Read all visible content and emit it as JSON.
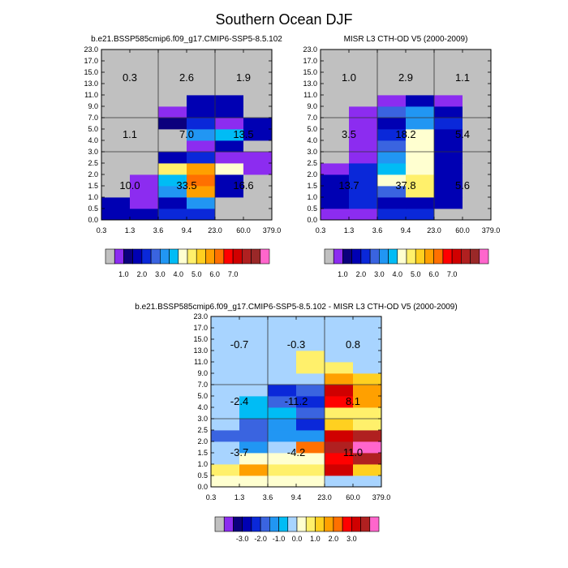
{
  "title": "Southern Ocean DJF",
  "chart_data": [
    {
      "type": "heatmap",
      "title": "b.e21.BSSP585cmip6.f09_g17.CMIP6-SSP5-8.5.102",
      "x_ticks": [
        "0.3",
        "1.3",
        "3.6",
        "9.4",
        "23.0",
        "60.0",
        "379.0"
      ],
      "y_ticks": [
        "0.0",
        "0.5",
        "1.0",
        "1.5",
        "2.0",
        "2.5",
        "3.0",
        "4.0",
        "5.0",
        "7.0",
        "9.0",
        "11.0",
        "13.0",
        "15.0",
        "17.0",
        "23.0"
      ],
      "colorbar_labels": [
        "1.0",
        "2.0",
        "3.0",
        "4.0",
        "5.0",
        "6.0",
        "7.0"
      ],
      "cells_note": "rows bottom-to-top (15 y bins), columns left-to-right (6 x bins); values are color-bin indices into palette",
      "cells": [
        [
          3,
          3,
          4,
          4,
          0,
          0
        ],
        [
          3,
          1,
          3,
          6,
          0,
          0
        ],
        [
          0,
          1,
          6,
          11,
          3,
          0
        ],
        [
          0,
          1,
          7,
          12,
          3,
          0
        ],
        [
          0,
          0,
          9,
          11,
          8,
          1
        ],
        [
          0,
          0,
          3,
          4,
          1,
          1
        ],
        [
          0,
          0,
          0,
          1,
          3,
          0
        ],
        [
          0,
          0,
          0,
          6,
          7,
          3
        ],
        [
          0,
          0,
          2,
          4,
          1,
          3
        ],
        [
          0,
          0,
          1,
          3,
          3,
          0
        ],
        [
          0,
          0,
          0,
          3,
          3,
          0
        ],
        [
          0,
          0,
          0,
          0,
          0,
          0
        ],
        [
          0,
          0,
          0,
          0,
          0,
          0
        ],
        [
          0,
          0,
          0,
          0,
          0,
          0
        ],
        [
          0,
          0,
          0,
          0,
          0,
          0
        ]
      ],
      "region_labels": [
        {
          "value": "0.3",
          "xi": 0,
          "yi": 12.5
        },
        {
          "value": "2.6",
          "xi": 2,
          "yi": 12.5
        },
        {
          "value": "1.9",
          "xi": 4,
          "yi": 12.5
        },
        {
          "value": "1.1",
          "xi": 0,
          "yi": 7.5
        },
        {
          "value": "7.0",
          "xi": 2,
          "yi": 7.5
        },
        {
          "value": "13.5",
          "xi": 4,
          "yi": 7.5
        },
        {
          "value": "10.0",
          "xi": 0,
          "yi": 3.0
        },
        {
          "value": "33.5",
          "xi": 2,
          "yi": 3.0
        },
        {
          "value": "16.6",
          "xi": 4,
          "yi": 3.0
        }
      ]
    },
    {
      "type": "heatmap",
      "title": "MISR L3 CTH-OD V5 (2000-2009)",
      "x_ticks": [
        "0.3",
        "1.3",
        "3.6",
        "9.4",
        "23.0",
        "60.0",
        "379.0"
      ],
      "y_ticks": [
        "0.0",
        "0.5",
        "1.0",
        "1.5",
        "2.0",
        "2.5",
        "3.0",
        "4.0",
        "5.0",
        "7.0",
        "9.0",
        "11.0",
        "13.0",
        "15.0",
        "17.0",
        "23.0"
      ],
      "colorbar_labels": [
        "1.0",
        "2.0",
        "3.0",
        "4.0",
        "5.0",
        "6.0",
        "7.0"
      ],
      "cells": [
        [
          1,
          1,
          4,
          4,
          0,
          0
        ],
        [
          3,
          4,
          3,
          3,
          3,
          0
        ],
        [
          3,
          4,
          5,
          9,
          3,
          0
        ],
        [
          3,
          4,
          8,
          9,
          3,
          0
        ],
        [
          1,
          4,
          7,
          8,
          3,
          0
        ],
        [
          0,
          1,
          6,
          8,
          3,
          0
        ],
        [
          0,
          1,
          5,
          8,
          3,
          0
        ],
        [
          0,
          1,
          4,
          8,
          3,
          0
        ],
        [
          0,
          1,
          3,
          6,
          4,
          0
        ],
        [
          0,
          1,
          5,
          6,
          3,
          0
        ],
        [
          0,
          0,
          1,
          3,
          1,
          0
        ],
        [
          0,
          0,
          0,
          0,
          0,
          0
        ],
        [
          0,
          0,
          0,
          0,
          0,
          0
        ],
        [
          0,
          0,
          0,
          0,
          0,
          0
        ],
        [
          0,
          0,
          0,
          0,
          0,
          0
        ]
      ],
      "region_labels": [
        {
          "value": "1.0",
          "xi": 0,
          "yi": 12.5
        },
        {
          "value": "2.9",
          "xi": 2,
          "yi": 12.5
        },
        {
          "value": "1.1",
          "xi": 4,
          "yi": 12.5
        },
        {
          "value": "3.5",
          "xi": 0,
          "yi": 7.5
        },
        {
          "value": "18.2",
          "xi": 2,
          "yi": 7.5
        },
        {
          "value": "5.4",
          "xi": 4,
          "yi": 7.5
        },
        {
          "value": "13.7",
          "xi": 0,
          "yi": 3.0
        },
        {
          "value": "37.8",
          "xi": 2,
          "yi": 3.0
        },
        {
          "value": "5.6",
          "xi": 4,
          "yi": 3.0
        }
      ]
    },
    {
      "type": "heatmap",
      "title": "b.e21.BSSP585cmip6.f09_g17.CMIP6-SSP5-8.5.102 - MISR L3 CTH-OD V5 (2000-2009)",
      "x_ticks": [
        "0.3",
        "1.3",
        "3.6",
        "9.4",
        "23.0",
        "60.0",
        "379.0"
      ],
      "y_ticks": [
        "0.0",
        "0.5",
        "1.0",
        "1.5",
        "2.0",
        "2.5",
        "3.0",
        "4.0",
        "5.0",
        "7.0",
        "9.0",
        "11.0",
        "13.0",
        "15.0",
        "17.0",
        "23.0"
      ],
      "colorbar_labels": [
        "-3.0",
        "-2.0",
        "-1.0",
        "0.0",
        "1.0",
        "2.0",
        "3.0"
      ],
      "cells": [
        [
          9,
          9,
          9,
          9,
          8,
          8
        ],
        [
          10,
          12,
          10,
          10,
          15,
          11
        ],
        [
          8,
          9,
          9,
          9,
          14,
          16
        ],
        [
          8,
          6,
          8,
          13,
          16,
          17
        ],
        [
          5,
          5,
          6,
          6,
          15,
          16
        ],
        [
          8,
          5,
          6,
          4,
          11,
          10
        ],
        [
          8,
          7,
          7,
          5,
          10,
          10
        ],
        [
          8,
          7,
          5,
          4,
          14,
          12
        ],
        [
          8,
          8,
          4,
          5,
          15,
          12
        ],
        [
          8,
          8,
          8,
          8,
          12,
          11
        ],
        [
          8,
          8,
          8,
          10,
          10,
          8
        ],
        [
          8,
          8,
          8,
          10,
          8,
          8
        ],
        [
          8,
          8,
          8,
          8,
          8,
          8
        ],
        [
          8,
          8,
          8,
          8,
          8,
          8
        ],
        [
          8,
          8,
          8,
          8,
          8,
          8
        ]
      ],
      "region_labels": [
        {
          "value": "-0.7",
          "xi": 0,
          "yi": 12.5
        },
        {
          "value": "-0.3",
          "xi": 2,
          "yi": 12.5
        },
        {
          "value": "0.8",
          "xi": 4,
          "yi": 12.5
        },
        {
          "value": "-2.4",
          "xi": 0,
          "yi": 7.5
        },
        {
          "value": "-11.2",
          "xi": 2,
          "yi": 7.5
        },
        {
          "value": "8.1",
          "xi": 4,
          "yi": 7.5
        },
        {
          "value": "-3.7",
          "xi": 0,
          "yi": 3.0
        },
        {
          "value": "-4.2",
          "xi": 2,
          "yi": 3.0
        },
        {
          "value": "11.0",
          "xi": 4,
          "yi": 3.0
        }
      ]
    }
  ],
  "palettes": {
    "top": [
      "#c0c0c0",
      "#8c2cf0",
      "#0b007d",
      "#0000b3",
      "#0a28d9",
      "#3a64e0",
      "#2196f3",
      "#00bcf5",
      "#ffffd0",
      "#fff06b",
      "#ffd020",
      "#ffa000",
      "#ff7000",
      "#ff0000",
      "#d00000",
      "#b02020",
      "#9a2828",
      "#ff66cc"
    ],
    "bottom": [
      "#c0c0c0",
      "#8c2cf0",
      "#0b007d",
      "#0000b3",
      "#0a28d9",
      "#3a64e0",
      "#2196f3",
      "#00bcf5",
      "#a8d4ff",
      "#ffffd0",
      "#fff06b",
      "#ffd020",
      "#ffa000",
      "#ff7000",
      "#ff0000",
      "#d00000",
      "#b02020",
      "#ff66cc"
    ]
  }
}
